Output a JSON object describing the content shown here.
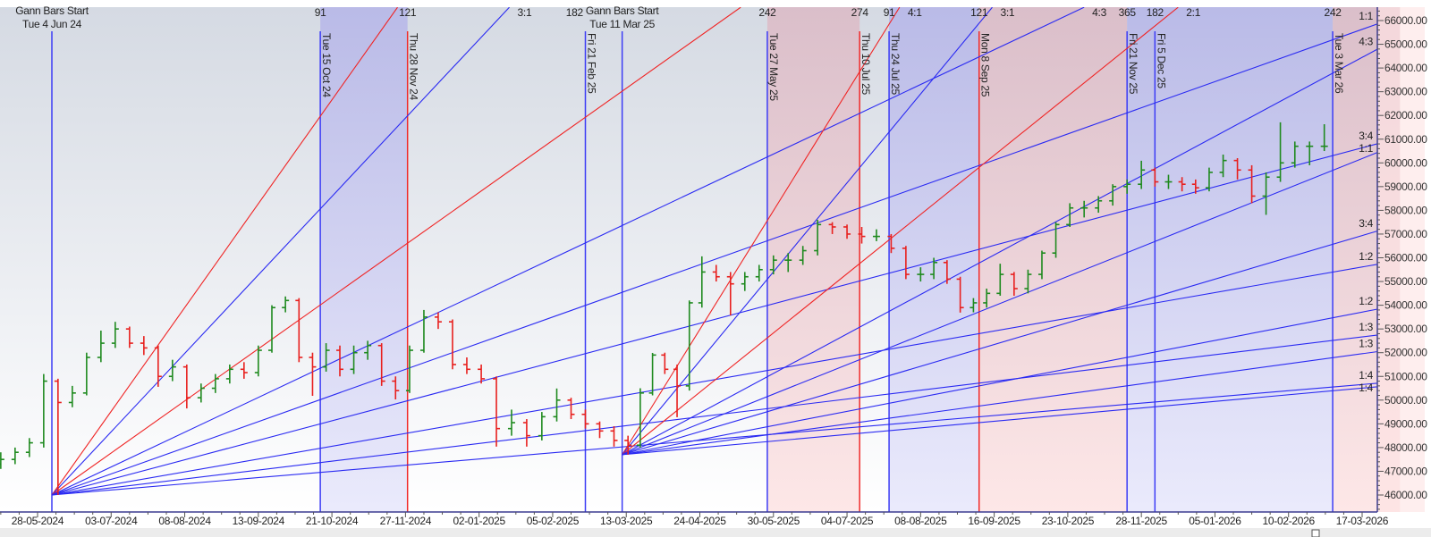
{
  "chart_data": {
    "type": "ohlc",
    "grid": false,
    "ylim": [
      45300,
      66560
    ],
    "xlim": [
      "2024-05-09",
      "2026-03-24"
    ],
    "x_axis": {
      "ticks": [
        "28-05-2024",
        "03-07-2024",
        "08-08-2024",
        "13-09-2024",
        "21-10-2024",
        "27-11-2024",
        "02-01-2025",
        "05-02-2025",
        "13-03-2025",
        "24-04-2025",
        "30-05-2025",
        "04-07-2025",
        "08-08-2025",
        "16-09-2025",
        "23-10-2025",
        "28-11-2025",
        "05-01-2026",
        "10-02-2026",
        "17-03-2026"
      ]
    },
    "y_axis": {
      "position": "right",
      "ticks": [
        "66000.00",
        "65000.00",
        "64000.00",
        "63000.00",
        "62000.00",
        "61000.00",
        "60000.00",
        "59000.00",
        "58000.00",
        "57000.00",
        "56000.00",
        "55000.00",
        "54000.00",
        "53000.00",
        "52000.00",
        "51000.00",
        "50000.00",
        "49000.00",
        "48000.00",
        "47000.00",
        "46000.00"
      ]
    },
    "colors": {
      "up": "#1f8a1f",
      "down": "#e8201e",
      "fan_blue": "#2a2af2",
      "fan_red": "#f02424",
      "marker_blue": "#3c3cf5",
      "marker_red": "#f02a2a",
      "zone_blue": "#b3b3e8",
      "zone_pink": "#dcb6c2",
      "axis": "#3c3c90"
    },
    "bars": [
      [
        "2024-05-10",
        47300,
        47800,
        47100,
        47500
      ],
      [
        "2024-05-17",
        47500,
        48000,
        47300,
        47800
      ],
      [
        "2024-05-24",
        47800,
        48400,
        47600,
        48200
      ],
      [
        "2024-05-31",
        48200,
        51100,
        48000,
        50800
      ],
      [
        "2024-06-07",
        50800,
        50900,
        46000,
        49900
      ],
      [
        "2024-06-14",
        49900,
        50600,
        49700,
        50300
      ],
      [
        "2024-06-21",
        50300,
        52000,
        50200,
        51800
      ],
      [
        "2024-06-28",
        51800,
        52930,
        51600,
        52400
      ],
      [
        "2024-07-05",
        52400,
        53300,
        52200,
        53000
      ],
      [
        "2024-07-12",
        53000,
        53100,
        52200,
        52400
      ],
      [
        "2024-07-19",
        52400,
        52700,
        51900,
        52200
      ],
      [
        "2024-07-26",
        52200,
        52300,
        50560,
        51000
      ],
      [
        "2024-08-02",
        51000,
        51700,
        50800,
        51400
      ],
      [
        "2024-08-09",
        51400,
        51500,
        49650,
        50100
      ],
      [
        "2024-08-16",
        50100,
        50700,
        49900,
        50500
      ],
      [
        "2024-08-23",
        50500,
        51100,
        50300,
        50900
      ],
      [
        "2024-08-30",
        50900,
        51500,
        50700,
        51300
      ],
      [
        "2024-09-06",
        51300,
        51600,
        50900,
        51160
      ],
      [
        "2024-09-13",
        51160,
        52300,
        51000,
        52100
      ],
      [
        "2024-09-20",
        52100,
        54000,
        52000,
        53900
      ],
      [
        "2024-09-27",
        53900,
        54370,
        53700,
        54200
      ],
      [
        "2024-10-04",
        54200,
        54300,
        51600,
        51800
      ],
      [
        "2024-10-11",
        51800,
        52000,
        50180,
        51400
      ],
      [
        "2024-10-18",
        51400,
        52400,
        51200,
        52100
      ],
      [
        "2024-10-25",
        52100,
        52300,
        51000,
        51300
      ],
      [
        "2024-11-01",
        51300,
        52300,
        51100,
        52000
      ],
      [
        "2024-11-08",
        52000,
        52500,
        51700,
        52300
      ],
      [
        "2024-11-15",
        52300,
        52400,
        50600,
        50800
      ],
      [
        "2024-11-22",
        50800,
        51000,
        50030,
        50400
      ],
      [
        "2024-11-29",
        50400,
        52300,
        50300,
        52100
      ],
      [
        "2024-12-06",
        52100,
        53800,
        52000,
        53500
      ],
      [
        "2024-12-13",
        53500,
        53700,
        53000,
        53300
      ],
      [
        "2024-12-20",
        53300,
        53400,
        51300,
        51500
      ],
      [
        "2024-12-27",
        51500,
        51800,
        51100,
        51300
      ],
      [
        "2025-01-03",
        51300,
        51500,
        50700,
        50900
      ],
      [
        "2025-01-10",
        50900,
        51000,
        48040,
        48800
      ],
      [
        "2025-01-17",
        48800,
        49600,
        48500,
        49050
      ],
      [
        "2025-01-24",
        49050,
        49200,
        48040,
        48500
      ],
      [
        "2025-01-31",
        48500,
        49500,
        48300,
        49300
      ],
      [
        "2025-02-07",
        49300,
        50490,
        49100,
        50000
      ],
      [
        "2025-02-14",
        50000,
        50100,
        49200,
        49400
      ],
      [
        "2025-02-21",
        49400,
        49600,
        48800,
        49000
      ],
      [
        "2025-02-28",
        49000,
        49100,
        48400,
        48700
      ],
      [
        "2025-03-07",
        48700,
        48900,
        48040,
        48300
      ],
      [
        "2025-03-14",
        48300,
        48500,
        47700,
        48100
      ],
      [
        "2025-03-21",
        48100,
        50500,
        48000,
        50300
      ],
      [
        "2025-03-28",
        50300,
        51990,
        50200,
        51900
      ],
      [
        "2025-04-04",
        51900,
        52000,
        51100,
        51300
      ],
      [
        "2025-04-11",
        51300,
        51500,
        49280,
        50600
      ],
      [
        "2025-04-18",
        50600,
        54200,
        50400,
        54100
      ],
      [
        "2025-04-25",
        54100,
        56060,
        53900,
        55400
      ],
      [
        "2025-05-02",
        55400,
        55700,
        55000,
        55200
      ],
      [
        "2025-05-09",
        55200,
        55400,
        53570,
        54900
      ],
      [
        "2025-05-16",
        54900,
        55400,
        54600,
        55200
      ],
      [
        "2025-05-23",
        55200,
        55700,
        55000,
        55500
      ],
      [
        "2025-05-30",
        55500,
        56100,
        55300,
        55900
      ],
      [
        "2025-06-06",
        55900,
        56200,
        55400,
        55900
      ],
      [
        "2025-06-13",
        55900,
        56500,
        55700,
        56300
      ],
      [
        "2025-06-20",
        56300,
        57600,
        56100,
        57400
      ],
      [
        "2025-06-27",
        57400,
        57500,
        57000,
        57300
      ],
      [
        "2025-07-04",
        57300,
        57400,
        56800,
        57000
      ],
      [
        "2025-07-11",
        57000,
        57300,
        56600,
        56900
      ],
      [
        "2025-07-18",
        56900,
        57200,
        56700,
        56900
      ],
      [
        "2025-07-25",
        56900,
        57000,
        56200,
        56400
      ],
      [
        "2025-08-01",
        56400,
        56500,
        55100,
        55300
      ],
      [
        "2025-08-08",
        55300,
        55600,
        55000,
        55300
      ],
      [
        "2025-08-15",
        55300,
        56000,
        55100,
        55800
      ],
      [
        "2025-08-22",
        55800,
        55900,
        54900,
        55100
      ],
      [
        "2025-08-29",
        55100,
        55200,
        53690,
        53900
      ],
      [
        "2025-09-05",
        53900,
        54300,
        53700,
        54100
      ],
      [
        "2025-09-12",
        54100,
        54700,
        53900,
        54500
      ],
      [
        "2025-09-19",
        54500,
        55750,
        54400,
        55300
      ],
      [
        "2025-09-26",
        55300,
        55400,
        54400,
        54700
      ],
      [
        "2025-10-03",
        54700,
        55500,
        54500,
        55300
      ],
      [
        "2025-10-10",
        55300,
        56300,
        55100,
        56200
      ],
      [
        "2025-10-17",
        56200,
        57500,
        56000,
        57400
      ],
      [
        "2025-10-24",
        57400,
        58300,
        57300,
        58100
      ],
      [
        "2025-10-31",
        58100,
        58400,
        57700,
        58100
      ],
      [
        "2025-11-07",
        58100,
        58600,
        57900,
        58400
      ],
      [
        "2025-11-14",
        58400,
        59100,
        58200,
        59000
      ],
      [
        "2025-11-21",
        59000,
        59300,
        58700,
        59100
      ],
      [
        "2025-11-28",
        59100,
        60090,
        58900,
        59700
      ],
      [
        "2025-12-05",
        59700,
        59800,
        59000,
        59200
      ],
      [
        "2025-12-12",
        59200,
        59500,
        58900,
        59200
      ],
      [
        "2025-12-19",
        59200,
        59400,
        58800,
        59100
      ],
      [
        "2025-12-26",
        59100,
        59300,
        58700,
        58950
      ],
      [
        "2026-01-02",
        58950,
        59800,
        58800,
        59600
      ],
      [
        "2026-01-09",
        59600,
        60350,
        59400,
        60100
      ],
      [
        "2026-01-16",
        60100,
        60200,
        59300,
        59700
      ],
      [
        "2026-01-23",
        59700,
        59900,
        58300,
        58600
      ],
      [
        "2026-01-30",
        58600,
        59600,
        57810,
        59400
      ],
      [
        "2026-02-06",
        59400,
        61710,
        59200,
        60000
      ],
      [
        "2026-02-13",
        60000,
        60900,
        59800,
        60700
      ],
      [
        "2026-02-20",
        60700,
        60900,
        59900,
        60700
      ],
      [
        "2026-02-27",
        60700,
        61630,
        60500,
        60700
      ]
    ],
    "gann_origins": [
      {
        "title": "Gann Bars Start",
        "date_label": "Tue 4 Jun 24",
        "date": "2024-06-04",
        "price": 46000
      },
      {
        "title": "Gann Bars Start",
        "date_label": "Tue 11 Mar 25",
        "date": "2025-03-11",
        "price": 47700
      }
    ],
    "fan_lines": [
      {
        "origin": 0,
        "ratio": "4:1",
        "color": "red",
        "end": [
          "2024-11-23",
          66560
        ],
        "label": ""
      },
      {
        "origin": 0,
        "ratio": "3:1",
        "color": "blue",
        "end": [
          "2025-01-16",
          66560
        ],
        "label": "3:1"
      },
      {
        "origin": 0,
        "ratio": "2:1",
        "color": "red",
        "end": [
          "2025-05-14",
          66560
        ],
        "label": ""
      },
      {
        "origin": 0,
        "ratio": "4:3",
        "color": "blue",
        "end": [
          "2025-10-31",
          66560
        ],
        "label": "4:3"
      },
      {
        "origin": 0,
        "ratio": "1:1",
        "color": "blue",
        "end": [
          "2026-03-24",
          65850
        ],
        "label": "1:1"
      },
      {
        "origin": 0,
        "ratio": "3:4",
        "color": "blue",
        "end": [
          "2026-03-24",
          60800
        ],
        "label": "3:4"
      },
      {
        "origin": 0,
        "ratio": "1:2",
        "color": "blue",
        "end": [
          "2026-03-24",
          55720
        ],
        "label": "1:2"
      },
      {
        "origin": 0,
        "ratio": "1:3",
        "color": "blue",
        "end": [
          "2026-03-24",
          52740
        ],
        "label": "1:3"
      },
      {
        "origin": 0,
        "ratio": "1:4",
        "color": "blue",
        "end": [
          "2026-03-24",
          50710
        ],
        "label": "1:4"
      },
      {
        "origin": 1,
        "ratio": "4:1",
        "color": "red",
        "end": [
          "2025-07-29",
          66560
        ],
        "label": "4:1"
      },
      {
        "origin": 1,
        "ratio": "3:1",
        "color": "blue",
        "end": [
          "2025-09-15",
          66560
        ],
        "label": "3:1"
      },
      {
        "origin": 1,
        "ratio": "2:1",
        "color": "red",
        "end": [
          "2025-12-17",
          66560
        ],
        "label": "2:1"
      },
      {
        "origin": 1,
        "ratio": "4:3",
        "color": "blue",
        "end": [
          "2026-03-24",
          64780
        ],
        "label": "4:3"
      },
      {
        "origin": 1,
        "ratio": "1:1",
        "color": "blue",
        "end": [
          "2026-03-24",
          60430
        ],
        "label": "1:1"
      },
      {
        "origin": 1,
        "ratio": "3:4",
        "color": "blue",
        "end": [
          "2026-03-24",
          57120
        ],
        "label": "3:4"
      },
      {
        "origin": 1,
        "ratio": "1:2",
        "color": "blue",
        "end": [
          "2026-03-24",
          53830
        ],
        "label": "1:2"
      },
      {
        "origin": 1,
        "ratio": "1:3",
        "color": "blue",
        "end": [
          "2026-03-24",
          52040
        ],
        "label": "1:3"
      },
      {
        "origin": 1,
        "ratio": "1:4",
        "color": "blue",
        "end": [
          "2026-03-24",
          50560
        ],
        "label": "1:4"
      }
    ],
    "vertical_markers": [
      {
        "date": "2024-10-15",
        "label": "Tue 15 Oct 24",
        "count": "91",
        "color": "blue"
      },
      {
        "date": "2024-11-28",
        "label": "Thu 28 Nov 24",
        "count": "121",
        "color": "red"
      },
      {
        "date": "2025-02-21",
        "label": "Fri 21 Feb 25",
        "count": "182",
        "color": "blue"
      },
      {
        "date": "2025-05-27",
        "label": "Tue 27 May 25",
        "count": "242",
        "color": "blue"
      },
      {
        "date": "2025-07-10",
        "label": "Thu 10 Jul 25",
        "count": "274",
        "color": "red"
      },
      {
        "date": "2025-07-24",
        "label": "Thu 24 Jul 25",
        "count": "91",
        "color": "blue"
      },
      {
        "date": "2025-09-08",
        "label": "Mon 8 Sep 25",
        "count": "121",
        "color": "red"
      },
      {
        "date": "2025-11-21",
        "label": "Fri 21 Nov 25",
        "count": "365",
        "color": "blue"
      },
      {
        "date": "2025-12-05",
        "label": "Fri 5 Dec 25",
        "count": "182",
        "color": "blue"
      },
      {
        "date": "2026-03-03",
        "label": "Tue 3 Mar 26",
        "count": "242",
        "color": "blue"
      }
    ],
    "zones": [
      {
        "start": "2024-10-15",
        "end": "2024-11-28",
        "color": "blue"
      },
      {
        "start": "2025-05-27",
        "end": "2025-07-10",
        "color": "pink"
      },
      {
        "start": "2025-07-24",
        "end": "2025-09-08",
        "color": "blue"
      },
      {
        "start": "2025-09-08",
        "end": "2025-11-21",
        "color": "pink"
      },
      {
        "start": "2025-11-21",
        "end": "2026-03-03",
        "color": "blue"
      },
      {
        "start": "2026-03-03",
        "end": "2026-04-04",
        "color": "pink"
      }
    ]
  }
}
